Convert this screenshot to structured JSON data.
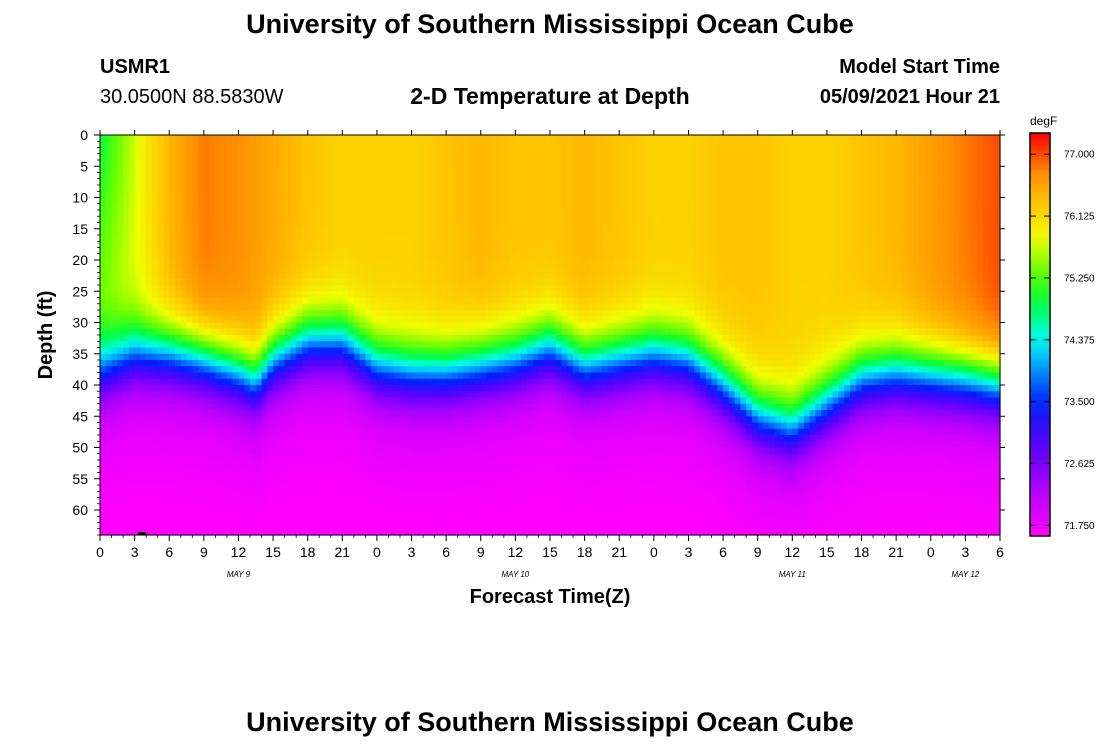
{
  "header": {
    "title": "University of Southern Mississippi Ocean Cube",
    "station_id": "USMR1",
    "coordinates": "30.0500N  88.5830W",
    "subtitle": "2-D Temperature at Depth",
    "model_start_label": "Model Start Time",
    "model_start_value": "05/09/2021 Hour 21"
  },
  "footer": {
    "title": "University of Southern Mississippi Ocean Cube"
  },
  "chart_data": {
    "type": "heatmap",
    "title": "2-D Temperature at Depth",
    "xlabel": "Forecast Time(Z)",
    "ylabel": "Depth (ft)",
    "x_ticks": [
      "0",
      "3",
      "6",
      "9",
      "12",
      "15",
      "18",
      "21",
      "0",
      "3",
      "6",
      "9",
      "12",
      "15",
      "18",
      "21",
      "0",
      "3",
      "6",
      "9",
      "12",
      "15",
      "18",
      "21",
      "0",
      "3",
      "6"
    ],
    "date_labels": [
      {
        "text": "MAY 9",
        "hour": 12
      },
      {
        "text": "MAY 10",
        "hour": 36
      },
      {
        "text": "MAY 11",
        "hour": 60
      },
      {
        "text": "MAY 12",
        "hour": 75
      }
    ],
    "xlim_hours": [
      0,
      78
    ],
    "y_ticks": [
      0,
      5,
      10,
      15,
      20,
      25,
      30,
      35,
      40,
      45,
      50,
      55,
      60
    ],
    "ylim": [
      0,
      64
    ],
    "colorbar": {
      "unit": "degF",
      "ticks": [
        "77.000",
        "76.125",
        "75.250",
        "74.375",
        "73.500",
        "72.625",
        "71.750"
      ],
      "range": [
        71.6,
        77.3
      ]
    },
    "surface_layer": {
      "hours": [
        0,
        3,
        6,
        9,
        12,
        15,
        18,
        21,
        24,
        27,
        30,
        33,
        36,
        39,
        42,
        45,
        48,
        51,
        54,
        57,
        60,
        63,
        66,
        69,
        72,
        75,
        78
      ],
      "temperature_degF": [
        75.4,
        75.8,
        76.4,
        76.8,
        76.7,
        76.5,
        76.3,
        76.2,
        76.2,
        76.2,
        76.3,
        76.4,
        76.3,
        76.3,
        76.4,
        76.3,
        76.2,
        76.2,
        76.3,
        76.3,
        76.2,
        76.2,
        76.3,
        76.4,
        76.6,
        76.8,
        77.0
      ]
    },
    "thermocline_depth_ft": {
      "hours": [
        0,
        3,
        6,
        9,
        12,
        13.5,
        15,
        18,
        21,
        24,
        27,
        30,
        33,
        36,
        39,
        42,
        45,
        48,
        51,
        54,
        57,
        60,
        63,
        66,
        69,
        72,
        75,
        78
      ],
      "depth": [
        38,
        35,
        35,
        36,
        38,
        39.5,
        36,
        33,
        33,
        37,
        38,
        38,
        37,
        36,
        34,
        37,
        36,
        35,
        36,
        40,
        45,
        47,
        43,
        39,
        38,
        38.5,
        39,
        40
      ]
    },
    "deep_temperature_degF": 71.8
  }
}
